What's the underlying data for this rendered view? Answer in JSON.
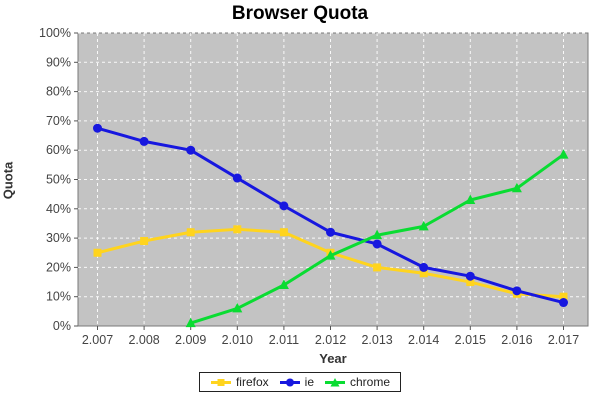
{
  "chart_data": {
    "type": "line",
    "title": "Browser Quota",
    "xlabel": "Year",
    "ylabel": "Quota",
    "x": [
      2007,
      2008,
      2009,
      2010,
      2011,
      2012,
      2013,
      2014,
      2015,
      2016,
      2017
    ],
    "x_tick_labels": [
      "2.007",
      "2.008",
      "2.009",
      "2.010",
      "2.011",
      "2.012",
      "2.013",
      "2.014",
      "2.015",
      "2.016",
      "2.017"
    ],
    "y_tick_labels": [
      "0%",
      "10%",
      "20%",
      "30%",
      "40%",
      "50%",
      "60%",
      "70%",
      "80%",
      "90%",
      "100%"
    ],
    "ylim": [
      0,
      100
    ],
    "y_tick_step": 10,
    "grid": "white dashed gridlines on gray plot background",
    "legend_position": "bottom",
    "series": [
      {
        "name": "firefox",
        "marker": "square",
        "color": "#FFD41E",
        "values": [
          25,
          29,
          32,
          33,
          32,
          25,
          20,
          18,
          15,
          11,
          10
        ]
      },
      {
        "name": "ie",
        "marker": "circle",
        "color": "#1717DF",
        "values": [
          67.5,
          63,
          60,
          50.5,
          41,
          32,
          28,
          20,
          17,
          12,
          8
        ]
      },
      {
        "name": "chrome",
        "marker": "triangle",
        "color": "#0ADC32",
        "values": [
          null,
          null,
          1,
          6,
          14,
          24,
          31,
          34,
          43,
          47,
          58.5
        ]
      }
    ]
  },
  "colors": {
    "plot_bg": "#C3C3C3",
    "plot_border": "#7A7A7A",
    "gridline": "#FFFFFF",
    "tick_mark": "#555555",
    "tick_label": "#444444",
    "title_text": "#000000",
    "axis_title_text": "#333333",
    "legend_border": "#222222"
  }
}
